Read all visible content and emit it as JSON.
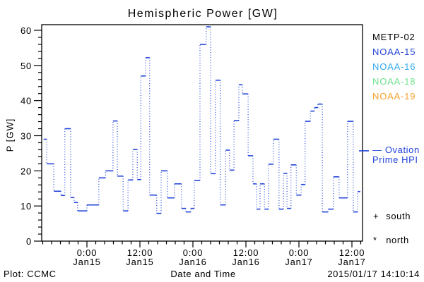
{
  "window": {
    "background": "#ffffff",
    "text_color": "#000000"
  },
  "chart_data": {
    "type": "line",
    "title": "Hemispheric Power [GW]",
    "xlabel": "Date and Time",
    "ylabel": "P [GW]",
    "grid": false,
    "ylim": [
      0,
      60
    ],
    "y_major_ticks": [
      0,
      10,
      20,
      30,
      40,
      50,
      60
    ],
    "y_minor_step_gw": 2,
    "x_unit": "hours relative to Jan15 0:00",
    "x_axis_hours_range": [
      -10.24,
      62.4
    ],
    "x_minor_step_hours": 2,
    "x_major_ticks": [
      {
        "hour": 0,
        "time": "0:00",
        "date": "Jan15"
      },
      {
        "hour": 12,
        "time": "12:00",
        "date": "Jan15"
      },
      {
        "hour": 24,
        "time": "0:00",
        "date": "Jan16"
      },
      {
        "hour": 36,
        "time": "12:00",
        "date": "Jan16"
      },
      {
        "hour": 48,
        "time": "0:00",
        "date": "Jan17"
      },
      {
        "hour": 60,
        "time": "12:00",
        "date": "Jan17"
      }
    ],
    "right_axis_marker_gw": 25.7,
    "series": [
      {
        "name": "Ovation Prime HPI",
        "color": "#2345D9",
        "line_style": "solid horizontal steps, dotted vertical connectors",
        "segments_t0_t1_gw": [
          [
            -9.8,
            -9.1,
            29
          ],
          [
            -9.1,
            -7.5,
            22
          ],
          [
            -7.5,
            -5.9,
            14.2
          ],
          [
            -5.9,
            -5.0,
            13
          ],
          [
            -5.0,
            -3.7,
            32
          ],
          [
            -3.7,
            -2.9,
            12.4
          ],
          [
            -2.9,
            -2.1,
            11
          ],
          [
            -2.1,
            0.0,
            8.6
          ],
          [
            0.0,
            2.7,
            10.3
          ],
          [
            2.7,
            4.2,
            18
          ],
          [
            4.2,
            5.9,
            20
          ],
          [
            5.9,
            6.9,
            34.2
          ],
          [
            6.9,
            8.2,
            18.5
          ],
          [
            8.2,
            9.3,
            8.6
          ],
          [
            9.3,
            10.4,
            17.4
          ],
          [
            10.4,
            11.4,
            26.1
          ],
          [
            11.4,
            12.2,
            17.5
          ],
          [
            12.2,
            13.3,
            47
          ],
          [
            13.3,
            14.2,
            52.2
          ],
          [
            14.2,
            15.8,
            13.1
          ],
          [
            15.8,
            16.8,
            7.9
          ],
          [
            16.8,
            18.2,
            20
          ],
          [
            18.2,
            19.8,
            12.3
          ],
          [
            19.8,
            21.4,
            16.3
          ],
          [
            21.4,
            22.4,
            9.3
          ],
          [
            22.4,
            23.5,
            8.3
          ],
          [
            23.5,
            24.3,
            9.3
          ],
          [
            24.3,
            25.6,
            17.3
          ],
          [
            25.6,
            27.0,
            56
          ],
          [
            27.0,
            28.0,
            61
          ],
          [
            28.0,
            29.1,
            19.2
          ],
          [
            29.1,
            30.2,
            45.8
          ],
          [
            30.2,
            31.4,
            10.3
          ],
          [
            31.4,
            32.3,
            25.9
          ],
          [
            32.3,
            33.3,
            20.2
          ],
          [
            33.3,
            34.4,
            34.3
          ],
          [
            34.4,
            35.2,
            44.5
          ],
          [
            35.2,
            36.5,
            41.9
          ],
          [
            36.5,
            37.6,
            24.3
          ],
          [
            37.6,
            38.4,
            16.3
          ],
          [
            38.4,
            39.2,
            9.1
          ],
          [
            39.2,
            40.2,
            16.3
          ],
          [
            40.2,
            41.1,
            9.1
          ],
          [
            41.1,
            42.2,
            21.9
          ],
          [
            42.2,
            43.5,
            29
          ],
          [
            43.5,
            44.5,
            9.1
          ],
          [
            44.5,
            45.3,
            19.3
          ],
          [
            45.3,
            46.2,
            9.3
          ],
          [
            46.2,
            47.4,
            21.7
          ],
          [
            47.4,
            48.5,
            13.1
          ],
          [
            48.5,
            49.4,
            16.1
          ],
          [
            49.4,
            50.6,
            34.1
          ],
          [
            50.6,
            51.5,
            37
          ],
          [
            51.5,
            52.3,
            38
          ],
          [
            52.3,
            53.3,
            39
          ],
          [
            53.3,
            54.6,
            8.3
          ],
          [
            54.6,
            55.8,
            9.1
          ],
          [
            55.8,
            57.1,
            18.3
          ],
          [
            57.1,
            59.0,
            12.3
          ],
          [
            59.0,
            60.3,
            34.1
          ],
          [
            60.3,
            61.3,
            8.3
          ],
          [
            61.3,
            61.9,
            14.1
          ]
        ]
      }
    ]
  },
  "legend": {
    "satellites": [
      {
        "label": "METP-02",
        "color": "#000000"
      },
      {
        "label": "NOAA-15",
        "color": "#2345D9"
      },
      {
        "label": "NOAA-16",
        "color": "#33AAEE"
      },
      {
        "label": "NOAA-18",
        "color": "#6FE28C"
      },
      {
        "label": "NOAA-19",
        "color": "#F5A02D"
      }
    ],
    "line_key": {
      "swatch": "—",
      "line1": "Ovation",
      "line2": "Prime HPI",
      "color": "#2345D9"
    },
    "markers": [
      {
        "symbol": "+",
        "label": "south"
      },
      {
        "symbol": "*",
        "label": "north"
      }
    ]
  },
  "footer": {
    "left": "Plot: CCMC",
    "right": "2015/01/17 14:10:14"
  }
}
